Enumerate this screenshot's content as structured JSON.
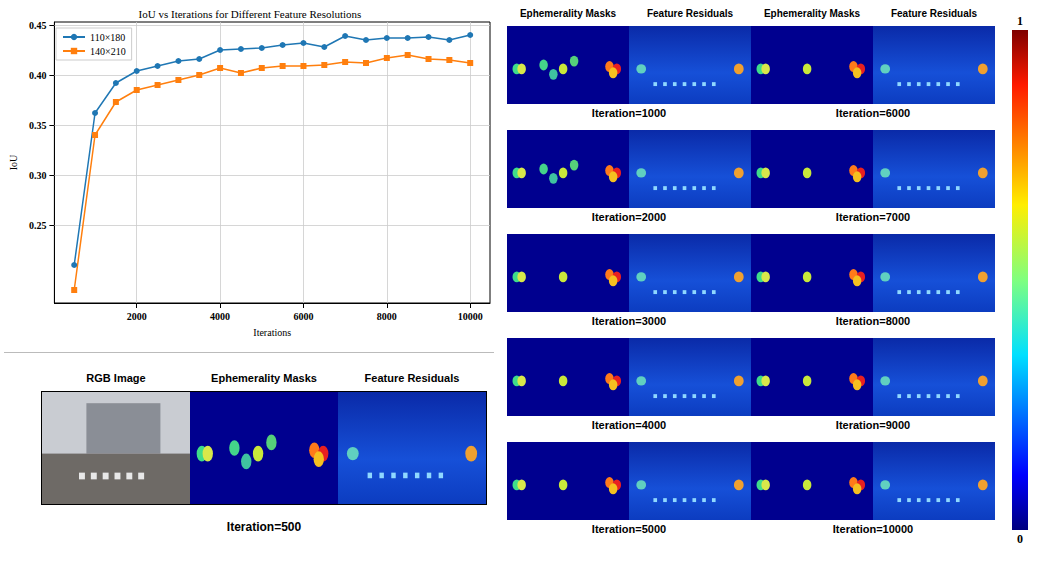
{
  "chart_data": {
    "type": "line",
    "title": "IoU vs Iterations for Different Feature Resolutions",
    "x_label": "Iterations",
    "y_label": "IoU",
    "x": [
      500,
      1000,
      1500,
      2000,
      2500,
      3000,
      3500,
      4000,
      4500,
      5000,
      5500,
      6000,
      6500,
      7000,
      7500,
      8000,
      8500,
      9000,
      9500,
      10000
    ],
    "series": [
      {
        "name": "110×180",
        "color": "#1f77b4",
        "marker": "circle",
        "values": [
          0.21,
          0.362,
          0.392,
          0.404,
          0.409,
          0.414,
          0.416,
          0.425,
          0.426,
          0.427,
          0.43,
          0.432,
          0.428,
          0.439,
          0.435,
          0.437,
          0.437,
          0.438,
          0.435,
          0.44
        ]
      },
      {
        "name": "140×210",
        "color": "#ff7f0e",
        "marker": "square",
        "values": [
          0.185,
          0.34,
          0.373,
          0.385,
          0.39,
          0.395,
          0.4,
          0.407,
          0.402,
          0.407,
          0.409,
          0.409,
          0.41,
          0.413,
          0.412,
          0.417,
          0.42,
          0.416,
          0.415,
          0.412
        ]
      }
    ],
    "xlim": [
      25,
      10475
    ],
    "ylim": [
      0.172,
      0.453
    ],
    "xticks": [
      2000,
      4000,
      6000,
      8000,
      10000
    ],
    "yticks": [
      0.25,
      {
        "value": 0.3,
        "label": "0.30"
      },
      0.35,
      {
        "value": 0.4,
        "label": "0.40"
      },
      0.45
    ],
    "grid": true,
    "legend": "upper left"
  },
  "panels": {
    "bottom_left": {
      "column_heads": [
        "RGB Image",
        "Ephemerality Masks",
        "Feature Residuals"
      ],
      "caption": "Iteration=500"
    },
    "right": {
      "column_heads": [
        "Ephemerality Masks",
        "Feature Residuals",
        "Ephemerality Masks",
        "Feature Residuals"
      ],
      "captions": [
        "Iteration=1000",
        "Iteration=2000",
        "Iteration=3000",
        "Iteration=4000",
        "Iteration=5000",
        "Iteration=6000",
        "Iteration=7000",
        "Iteration=8000",
        "Iteration=9000",
        "Iteration=10000"
      ]
    },
    "colorbar": {
      "range": [
        0,
        1
      ],
      "ticks": [
        0,
        1
      ]
    }
  }
}
